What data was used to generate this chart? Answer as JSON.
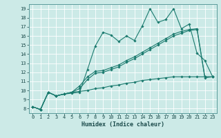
{
  "title": "",
  "xlabel": "Humidex (Indice chaleur)",
  "ylabel": "",
  "background_color": "#cceae7",
  "grid_color": "#ffffff",
  "line_color": "#1a7a6e",
  "xlim": [
    -0.5,
    23.5
  ],
  "ylim": [
    7.5,
    19.5
  ],
  "xticks": [
    0,
    1,
    2,
    3,
    4,
    5,
    6,
    7,
    8,
    9,
    10,
    11,
    12,
    13,
    14,
    15,
    16,
    17,
    18,
    19,
    20,
    21,
    22,
    23
  ],
  "yticks": [
    8,
    9,
    10,
    11,
    12,
    13,
    14,
    15,
    16,
    17,
    18,
    19
  ],
  "series": {
    "line1": [
      8.2,
      7.9,
      9.8,
      9.4,
      9.6,
      9.7,
      9.8,
      12.3,
      14.9,
      16.4,
      16.1,
      15.4,
      16.0,
      15.5,
      17.1,
      19.0,
      17.5,
      17.8,
      19.0,
      16.8,
      17.3,
      14.1,
      13.3,
      11.5
    ],
    "line2": [
      8.2,
      7.9,
      9.8,
      9.4,
      9.6,
      9.8,
      10.5,
      11.5,
      12.1,
      12.2,
      12.5,
      12.8,
      13.3,
      13.7,
      14.2,
      14.7,
      15.2,
      15.7,
      16.2,
      16.5,
      16.7,
      16.8,
      11.5,
      11.5
    ],
    "line3": [
      8.2,
      7.9,
      9.8,
      9.4,
      9.6,
      9.8,
      10.2,
      11.2,
      11.9,
      12.0,
      12.3,
      12.6,
      13.1,
      13.5,
      14.0,
      14.5,
      15.0,
      15.5,
      16.0,
      16.3,
      16.6,
      16.7,
      11.4,
      11.5
    ],
    "line4": [
      8.2,
      7.9,
      9.8,
      9.4,
      9.6,
      9.8,
      9.9,
      10.0,
      10.2,
      10.3,
      10.5,
      10.6,
      10.8,
      10.9,
      11.1,
      11.2,
      11.3,
      11.4,
      11.5,
      11.5,
      11.5,
      11.5,
      11.5,
      11.5
    ]
  },
  "tick_fontsize": 5.0,
  "xlabel_fontsize": 6.0,
  "marker_size": 1.8,
  "linewidth": 0.8
}
